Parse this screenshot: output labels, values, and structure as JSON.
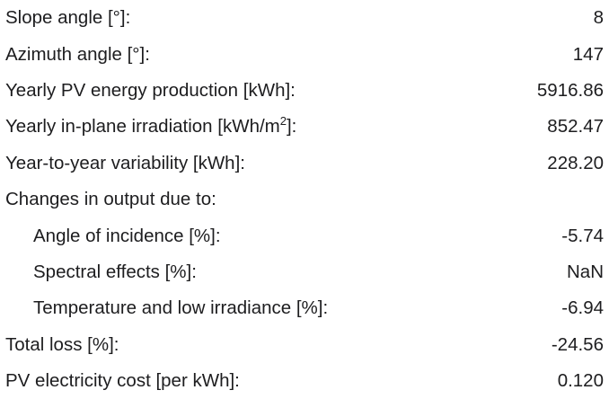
{
  "rows": [
    {
      "label": "Slope angle [°]:",
      "value": "8"
    },
    {
      "label": "Azimuth angle [°]:",
      "value": "147"
    },
    {
      "label": "Yearly PV energy production [kWh]:",
      "value": "5916.86"
    },
    {
      "label": "Yearly in-plane irradiation [kWh/m",
      "sup": "2",
      "label_end": "]:",
      "value": "852.47"
    },
    {
      "label": "Year-to-year variability [kWh]:",
      "value": "228.20"
    }
  ],
  "changes": {
    "title": "Changes in output due to:",
    "rows": [
      {
        "label": "Angle of incidence [%]:",
        "value": "-5.74"
      },
      {
        "label": "Spectral effects [%]:",
        "value": "NaN"
      },
      {
        "label": "Temperature and low irradiance [%]:",
        "value": "-6.94"
      }
    ]
  },
  "summary": [
    {
      "label": "Total loss [%]:",
      "value": "-24.56"
    },
    {
      "label": "PV electricity cost [per kWh]:",
      "value": "0.120"
    }
  ]
}
